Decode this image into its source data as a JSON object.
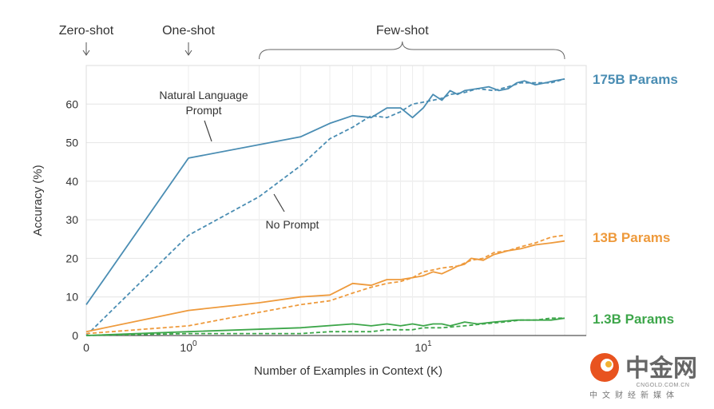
{
  "chart_data": {
    "type": "line",
    "xlabel": "Number of Examples in Context  (K)",
    "ylabel": "Accuracy (%)",
    "ylim": [
      0,
      70
    ],
    "x_scale": "symlog",
    "xlim": [
      0,
      40
    ],
    "yticks": [
      0,
      10,
      20,
      30,
      40,
      50,
      60
    ],
    "xticks": [
      {
        "value": 0,
        "base": "0",
        "exp": ""
      },
      {
        "value": 1,
        "base": "10",
        "exp": "0"
      },
      {
        "value": 10,
        "base": "10",
        "exp": "1"
      }
    ],
    "grid": true,
    "groups": [
      {
        "label": "Zero-shot",
        "x": 0
      },
      {
        "label": "One-shot",
        "x": 1
      },
      {
        "label": "Few-shot",
        "x_from": 2,
        "x_to": 40
      }
    ],
    "annotations": [
      {
        "lines": [
          "Natural Language",
          "Prompt"
        ],
        "points_to": "175B Params solid"
      },
      {
        "lines": [
          "No Prompt"
        ],
        "points_to": "175B Params dashed"
      }
    ],
    "series_labels": [
      {
        "text": "175B Params",
        "color": "#4a8db3"
      },
      {
        "text": "13B Params",
        "color": "#ee9a3c"
      },
      {
        "text": "1.3B Params",
        "color": "#3da64a"
      }
    ],
    "series": [
      {
        "model": "175B Params",
        "prompt": "Natural Language Prompt",
        "style": "solid",
        "color": "#4a8db3",
        "points": [
          [
            0,
            8
          ],
          [
            1,
            46
          ],
          [
            3,
            51.5
          ],
          [
            4,
            55
          ],
          [
            5,
            57
          ],
          [
            6,
            56.5
          ],
          [
            7,
            59
          ],
          [
            8,
            59
          ],
          [
            9,
            56.5
          ],
          [
            10,
            59
          ],
          [
            11,
            62.5
          ],
          [
            12,
            61
          ],
          [
            13,
            63.5
          ],
          [
            14,
            62.5
          ],
          [
            15,
            63.5
          ],
          [
            17,
            64
          ],
          [
            19,
            64.5
          ],
          [
            21,
            63.5
          ],
          [
            23,
            64
          ],
          [
            25,
            65.5
          ],
          [
            27,
            66
          ],
          [
            30,
            65
          ],
          [
            33,
            65.5
          ],
          [
            36,
            66
          ],
          [
            40,
            66.5
          ]
        ]
      },
      {
        "model": "175B Params",
        "prompt": "No Prompt",
        "style": "dashed",
        "color": "#4a8db3",
        "points": [
          [
            0,
            0
          ],
          [
            1,
            26
          ],
          [
            2,
            36
          ],
          [
            3,
            44
          ],
          [
            4,
            51
          ],
          [
            5,
            54
          ],
          [
            6,
            57
          ],
          [
            7,
            56.5
          ],
          [
            8,
            58
          ],
          [
            9,
            60
          ],
          [
            10,
            60.5
          ],
          [
            11,
            61
          ],
          [
            12,
            61.5
          ],
          [
            13,
            62.5
          ],
          [
            15,
            63
          ],
          [
            17,
            64
          ],
          [
            20,
            63.5
          ],
          [
            23,
            64.5
          ],
          [
            26,
            65.5
          ],
          [
            30,
            65.5
          ],
          [
            35,
            65.5
          ],
          [
            40,
            66.5
          ]
        ]
      },
      {
        "model": "13B Params",
        "prompt": "Natural Language Prompt",
        "style": "solid",
        "color": "#ee9a3c",
        "points": [
          [
            0,
            1
          ],
          [
            1,
            6.5
          ],
          [
            2,
            8.5
          ],
          [
            3,
            10
          ],
          [
            4,
            10.5
          ],
          [
            5,
            13.5
          ],
          [
            6,
            13
          ],
          [
            7,
            14.5
          ],
          [
            8,
            14.5
          ],
          [
            9,
            15
          ],
          [
            10,
            15.5
          ],
          [
            11,
            16.5
          ],
          [
            12,
            16
          ],
          [
            13,
            17
          ],
          [
            14,
            18
          ],
          [
            15,
            18.5
          ],
          [
            16,
            20
          ],
          [
            18,
            19.5
          ],
          [
            20,
            21
          ],
          [
            23,
            22
          ],
          [
            26,
            22.5
          ],
          [
            30,
            23.5
          ],
          [
            35,
            24
          ],
          [
            40,
            24.5
          ]
        ]
      },
      {
        "model": "13B Params",
        "prompt": "No Prompt",
        "style": "dashed",
        "color": "#ee9a3c",
        "points": [
          [
            0,
            0.5
          ],
          [
            1,
            2.5
          ],
          [
            2,
            6
          ],
          [
            3,
            8
          ],
          [
            4,
            9
          ],
          [
            5,
            11
          ],
          [
            6,
            12.5
          ],
          [
            7,
            13.5
          ],
          [
            8,
            14
          ],
          [
            9,
            15
          ],
          [
            10,
            16.5
          ],
          [
            11,
            17
          ],
          [
            12,
            17.5
          ],
          [
            14,
            18
          ],
          [
            16,
            19.5
          ],
          [
            18,
            20
          ],
          [
            20,
            21.5
          ],
          [
            23,
            22
          ],
          [
            26,
            23
          ],
          [
            30,
            24
          ],
          [
            35,
            25.5
          ],
          [
            40,
            26
          ]
        ]
      },
      {
        "model": "1.3B Params",
        "prompt": "Natural Language Prompt",
        "style": "solid",
        "color": "#3da64a",
        "points": [
          [
            0,
            0
          ],
          [
            1,
            1
          ],
          [
            3,
            2
          ],
          [
            5,
            3
          ],
          [
            6,
            2.5
          ],
          [
            7,
            3
          ],
          [
            8,
            2.5
          ],
          [
            9,
            3
          ],
          [
            10,
            2.5
          ],
          [
            11,
            3
          ],
          [
            12,
            3
          ],
          [
            13,
            2.5
          ],
          [
            14,
            3
          ],
          [
            15,
            3.5
          ],
          [
            17,
            3
          ],
          [
            20,
            3.5
          ],
          [
            25,
            4
          ],
          [
            30,
            4
          ],
          [
            35,
            4
          ],
          [
            40,
            4.5
          ]
        ]
      },
      {
        "model": "1.3B Params",
        "prompt": "No Prompt",
        "style": "dashed",
        "color": "#3da64a",
        "points": [
          [
            0,
            0
          ],
          [
            1,
            0.5
          ],
          [
            2,
            0.5
          ],
          [
            3,
            0.5
          ],
          [
            4,
            1
          ],
          [
            5,
            1
          ],
          [
            6,
            1
          ],
          [
            7,
            1.5
          ],
          [
            8,
            1.5
          ],
          [
            9,
            1.5
          ],
          [
            10,
            2
          ],
          [
            12,
            2
          ],
          [
            15,
            2.5
          ],
          [
            18,
            3
          ],
          [
            22,
            3.5
          ],
          [
            26,
            4
          ],
          [
            30,
            4
          ],
          [
            35,
            4.5
          ],
          [
            40,
            4.5
          ]
        ]
      }
    ]
  },
  "watermark": {
    "brand_cn": "中金网",
    "site": "CNGOLD.COM.CN",
    "tagline_cn": "中文财经新媒体"
  }
}
